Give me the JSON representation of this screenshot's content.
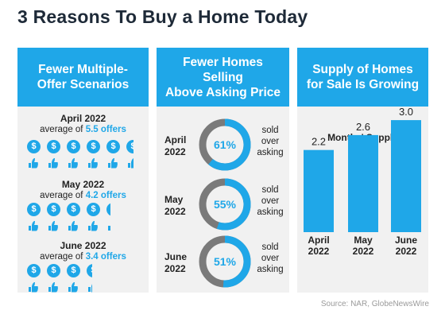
{
  "title": "3 Reasons To Buy a Home Today",
  "panels": [
    {
      "header_lines": [
        "Fewer Multiple-",
        "Offer Scenarios"
      ],
      "groups": [
        {
          "month": "April 2022",
          "avg_prefix": "average of ",
          "avg_value": "5.5 offers",
          "offers": 5.5
        },
        {
          "month": "May 2022",
          "avg_prefix": "average of ",
          "avg_value": "4.2 offers",
          "offers": 4.2
        },
        {
          "month": "June 2022",
          "avg_prefix": "average of ",
          "avg_value": "3.4 offers",
          "offers": 3.4
        }
      ],
      "coin_symbol": "$",
      "icon_names": [
        "dollar-coin-icon",
        "open-hand-icon"
      ]
    },
    {
      "header_lines": [
        "Fewer Homes Selling",
        "Above Asking Price"
      ],
      "rows": [
        {
          "month": "April",
          "year": "2022",
          "pct_label": "61%",
          "pct": 61,
          "side": [
            "sold",
            "over",
            "asking"
          ]
        },
        {
          "month": "May",
          "year": "2022",
          "pct_label": "55%",
          "pct": 55,
          "side": [
            "sold",
            "over",
            "asking"
          ]
        },
        {
          "month": "June",
          "year": "2022",
          "pct_label": "51%",
          "pct": 51,
          "side": [
            "sold",
            "over",
            "asking"
          ]
        }
      ]
    },
    {
      "header_lines": [
        "Supply of Homes",
        "for Sale Is Growing"
      ]
    }
  ],
  "chart_data": {
    "type": "bar",
    "title": "Months' Supply",
    "categories": [
      [
        "April",
        "2022"
      ],
      [
        "May",
        "2022"
      ],
      [
        "June",
        "2022"
      ]
    ],
    "values": [
      2.2,
      2.6,
      3.0
    ],
    "value_labels": [
      "2.2",
      "2.6",
      "3.0"
    ],
    "ylim": [
      0,
      3.3
    ],
    "grid": false,
    "legend": "none"
  },
  "source": "Source: NAR, GlobeNewsWire",
  "colors": {
    "accent": "#1fa7e8",
    "ring_track": "#7a7a7a",
    "panel_bg": "#f1f1f1",
    "title": "#1e2a38"
  }
}
